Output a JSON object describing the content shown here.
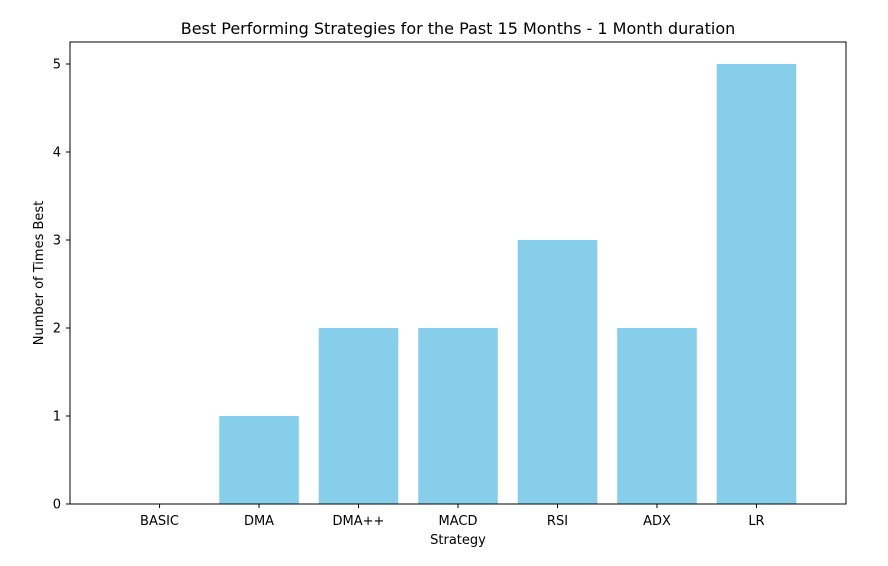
{
  "chart_data": {
    "type": "bar",
    "title": "Best Performing Strategies for the Past 15 Months - 1 Month duration",
    "xlabel": "Strategy",
    "ylabel": "Number of Times Best",
    "categories": [
      "BASIC",
      "DMA",
      "DMA++",
      "MACD",
      "RSI",
      "ADX",
      "LR"
    ],
    "values": [
      0,
      1,
      2,
      2,
      3,
      2,
      5
    ],
    "ylim": [
      0,
      5.25
    ],
    "yticks": [
      "0",
      "1",
      "2",
      "3",
      "4",
      "5"
    ],
    "grid": false,
    "legend": "none",
    "bar_color": "#87CEEB"
  }
}
